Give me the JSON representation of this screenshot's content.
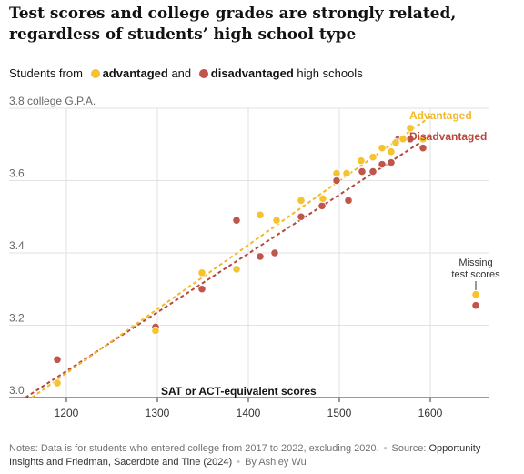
{
  "title": "Test scores and college grades are strongly related, regardless of students’ high school type",
  "legend": {
    "prefix": "Students from",
    "advantaged": "advantaged",
    "and": "and",
    "disadvantaged": "disadvantaged",
    "suffix": "high schools"
  },
  "colors": {
    "advantaged": "#f5c230",
    "disadvantaged": "#c0564b",
    "adv_trend": "#f2b82a",
    "dis_trend": "#b8473d",
    "grid": "#e2e2e2",
    "axis": "#333333"
  },
  "chart_data": {
    "type": "scatter",
    "title": "Test scores and college grades are strongly related, regardless of students’ high school type",
    "ylabel": "college G.P.A.",
    "xlabel": "SAT or ACT-equivalent scores",
    "xlim": [
      1155,
      1665
    ],
    "ylim": [
      3.0,
      3.8
    ],
    "x_ticks": [
      1200,
      1300,
      1400,
      1500,
      1600
    ],
    "y_ticks": [
      3.0,
      3.2,
      3.4,
      3.6,
      3.8
    ],
    "y_tick_labels": [
      "3.0",
      "3.2",
      "3.4",
      "3.6",
      "3.8"
    ],
    "grid": "horizontal and vertical",
    "series": [
      {
        "name": "Advantaged",
        "color": "#f5c230",
        "points": [
          [
            1190,
            3.04
          ],
          [
            1298,
            3.185
          ],
          [
            1349,
            3.345
          ],
          [
            1387,
            3.355
          ],
          [
            1413,
            3.505
          ],
          [
            1431,
            3.49
          ],
          [
            1458,
            3.545
          ],
          [
            1482,
            3.55
          ],
          [
            1497,
            3.62
          ],
          [
            1508,
            3.62
          ],
          [
            1524,
            3.655
          ],
          [
            1537,
            3.665
          ],
          [
            1547,
            3.69
          ],
          [
            1557,
            3.68
          ],
          [
            1562,
            3.705
          ],
          [
            1570,
            3.715
          ],
          [
            1578,
            3.745
          ],
          [
            1592,
            3.715
          ]
        ],
        "trend": [
          [
            1162,
            3.0
          ],
          [
            1602,
            3.78
          ]
        ]
      },
      {
        "name": "Disadvantaged",
        "color": "#c0564b",
        "points": [
          [
            1190,
            3.105
          ],
          [
            1298,
            3.195
          ],
          [
            1349,
            3.3
          ],
          [
            1387,
            3.49
          ],
          [
            1413,
            3.39
          ],
          [
            1429,
            3.4
          ],
          [
            1458,
            3.5
          ],
          [
            1481,
            3.53
          ],
          [
            1497,
            3.6
          ],
          [
            1510,
            3.545
          ],
          [
            1525,
            3.625
          ],
          [
            1537,
            3.625
          ],
          [
            1547,
            3.645
          ],
          [
            1557,
            3.65
          ],
          [
            1565,
            3.715
          ],
          [
            1578,
            3.715
          ],
          [
            1592,
            3.69
          ]
        ],
        "trend": [
          [
            1155,
            3.0
          ],
          [
            1601,
            3.725
          ]
        ]
      },
      {
        "name": "Missing test scores",
        "points_advantaged": [
          [
            1650,
            3.285
          ]
        ],
        "points_disadvantaged": [
          [
            1650,
            3.255
          ]
        ]
      }
    ],
    "line_labels": {
      "advantaged": "Advantaged",
      "disadvantaged": "Disadvantaged"
    },
    "annotation": [
      "Missing",
      "test scores"
    ]
  },
  "notes": {
    "text": "Notes: Data is for students who entered college from 2017 to 2022, excluding 2020.",
    "source_label": "Source:",
    "source": "Opportunity Insights and Friedman, Sacerdote and Tine (2024)",
    "byline": "By Ashley Wu"
  }
}
